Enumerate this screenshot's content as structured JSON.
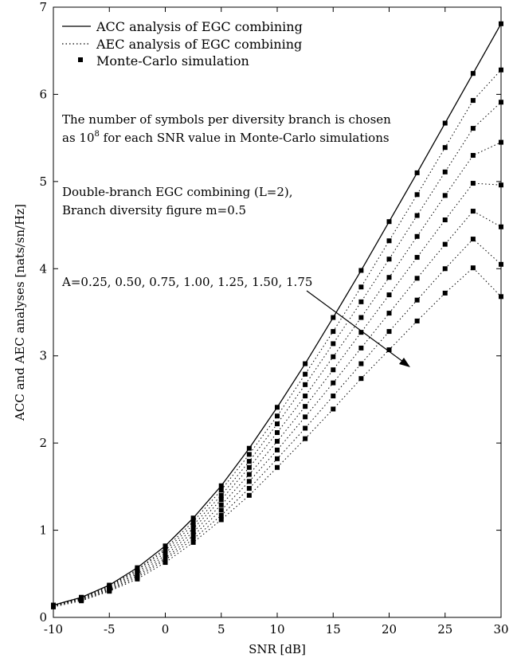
{
  "chart_data": {
    "type": "line",
    "title": "",
    "xlabel": "SNR [dB]",
    "ylabel": "ACC and AEC analyses [nats/sn/Hz]",
    "xlim": [
      -10,
      30
    ],
    "ylim": [
      0,
      7
    ],
    "xticks": [
      -10,
      -5,
      0,
      5,
      10,
      15,
      20,
      25,
      30
    ],
    "yticks": [
      0,
      1,
      2,
      3,
      4,
      5,
      6,
      7
    ],
    "grid": false,
    "legend_position": "top-left",
    "legend": [
      {
        "label": "ACC analysis of EGC combining",
        "style": "solid"
      },
      {
        "label": "AEC analysis of EGC combining",
        "style": "dotted"
      },
      {
        "label": "Monte-Carlo simulation",
        "style": "square-marker"
      }
    ],
    "annotations": {
      "symbols_note_line1": "The number of symbols per diversity branch is chosen",
      "symbols_note_line2_pre": "as 10",
      "symbols_note_sup": "8",
      "symbols_note_line2_post": " for each SNR value in Monte-Carlo simulations",
      "config_line1": "Double-branch EGC combining (L=2),",
      "config_line2": "Branch diversity figure m=0.5",
      "arrow_label": "A=0.25, 0.50, 0.75, 1.00, 1.25, 1.50, 1.75"
    },
    "x": [
      -10,
      -7.5,
      -5,
      -2.5,
      0,
      2.5,
      5,
      7.5,
      10,
      12.5,
      15,
      17.5,
      20,
      22.5,
      25,
      27.5,
      30
    ],
    "acc_series": {
      "name": "ACC analysis of EGC combining",
      "values": [
        0.14,
        0.23,
        0.37,
        0.57,
        0.82,
        1.14,
        1.51,
        1.94,
        2.41,
        2.91,
        3.44,
        3.98,
        4.54,
        5.1,
        5.67,
        6.24,
        6.81
      ]
    },
    "aec_series": [
      {
        "A": "0.25",
        "values": [
          0.14,
          0.23,
          0.36,
          0.55,
          0.79,
          1.1,
          1.46,
          1.87,
          2.31,
          2.79,
          3.28,
          3.79,
          4.32,
          4.85,
          5.39,
          5.93,
          6.28
        ]
      },
      {
        "A": "0.50",
        "values": [
          0.14,
          0.22,
          0.35,
          0.54,
          0.77,
          1.06,
          1.4,
          1.79,
          2.22,
          2.67,
          3.14,
          3.62,
          4.11,
          4.61,
          5.11,
          5.61,
          5.91
        ]
      },
      {
        "A": "0.75",
        "values": [
          0.13,
          0.22,
          0.34,
          0.52,
          0.74,
          1.02,
          1.35,
          1.72,
          2.12,
          2.54,
          2.99,
          3.44,
          3.9,
          4.37,
          4.84,
          5.3,
          5.45
        ]
      },
      {
        "A": "1.00",
        "values": [
          0.13,
          0.21,
          0.33,
          0.5,
          0.71,
          0.98,
          1.29,
          1.64,
          2.02,
          2.42,
          2.84,
          3.27,
          3.7,
          4.13,
          4.56,
          4.98,
          4.96
        ]
      },
      {
        "A": "1.25",
        "values": [
          0.13,
          0.21,
          0.32,
          0.48,
          0.68,
          0.94,
          1.23,
          1.56,
          1.92,
          2.3,
          2.69,
          3.09,
          3.49,
          3.89,
          4.28,
          4.66,
          4.48
        ]
      },
      {
        "A": "1.50",
        "values": [
          0.13,
          0.2,
          0.31,
          0.46,
          0.66,
          0.9,
          1.17,
          1.48,
          1.82,
          2.17,
          2.54,
          2.91,
          3.28,
          3.64,
          4.0,
          4.34,
          4.05
        ]
      },
      {
        "A": "1.75",
        "values": [
          0.12,
          0.19,
          0.3,
          0.44,
          0.63,
          0.86,
          1.12,
          1.4,
          1.72,
          2.05,
          2.39,
          2.74,
          3.07,
          3.4,
          3.72,
          4.01,
          3.68
        ]
      }
    ]
  }
}
